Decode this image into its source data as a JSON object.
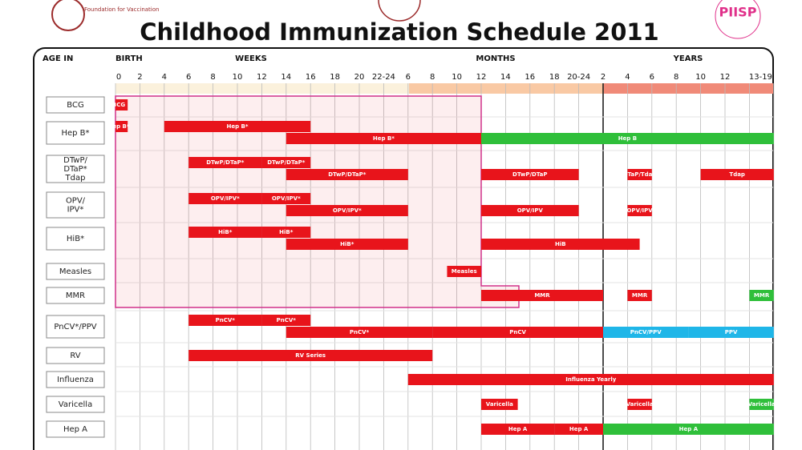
{
  "header": {
    "title": "Childhood Immunization Schedule 2011",
    "logo_left": "Foundation for Vaccination",
    "logo_right": "PIISP"
  },
  "columns": {
    "age_in": "AGE IN",
    "birth": "BIRTH",
    "weeks": "WEEKS",
    "months": "MONTHS",
    "years": "YEARS",
    "ticks": [
      "0",
      "2",
      "4",
      "6",
      "8",
      "10",
      "12",
      "14",
      "16",
      "18",
      "20",
      "22-24",
      "6",
      "8",
      "10",
      "12",
      "14",
      "16",
      "18",
      "20-24",
      "2",
      "4",
      "6",
      "8",
      "10",
      "12",
      "13-19"
    ]
  },
  "rows": [
    {
      "name": "BCG",
      "lanes": [
        [
          {
            "label": "BCG",
            "from": 0,
            "to": 0.5,
            "color": "#e8141b"
          }
        ]
      ]
    },
    {
      "name": "Hep B*",
      "lanes": [
        [
          {
            "label": "Hep B*",
            "from": 0,
            "to": 0.5,
            "color": "#e8141b"
          },
          {
            "label": "Hep B*",
            "from": 2,
            "to": 8,
            "color": "#e8141b"
          }
        ],
        [
          {
            "label": "Hep B*",
            "from": 7,
            "to": 15,
            "color": "#e8141b"
          },
          {
            "label": "Hep B",
            "from": 15,
            "to": 27,
            "color": "#2fbf3a"
          }
        ]
      ]
    },
    {
      "name": "DTwP/ DTaP* Tdap",
      "lanes": [
        [
          {
            "label": "DTwP/DTaP*",
            "from": 3,
            "to": 6,
            "color": "#e8141b"
          },
          {
            "label": "DTwP/DTaP*",
            "from": 6,
            "to": 8,
            "color": "#e8141b"
          }
        ],
        [
          {
            "label": "DTwP/DTaP*",
            "from": 7,
            "to": 12,
            "color": "#e8141b"
          },
          {
            "label": "DTwP/DTaP",
            "from": 15,
            "to": 19,
            "color": "#e8141b"
          },
          {
            "label": "DTaP/Tdap",
            "from": 21,
            "to": 22,
            "color": "#e8141b"
          },
          {
            "label": "Tdap",
            "from": 24,
            "to": 27,
            "color": "#e8141b"
          }
        ]
      ]
    },
    {
      "name": "OPV/ IPV*",
      "lanes": [
        [
          {
            "label": "OPV/IPV*",
            "from": 3,
            "to": 6,
            "color": "#e8141b"
          },
          {
            "label": "OPV/IPV*",
            "from": 6,
            "to": 8,
            "color": "#e8141b"
          }
        ],
        [
          {
            "label": "OPV/IPV*",
            "from": 7,
            "to": 12,
            "color": "#e8141b"
          },
          {
            "label": "OPV/IPV",
            "from": 15,
            "to": 19,
            "color": "#e8141b"
          },
          {
            "label": "OPV/IPV",
            "from": 21,
            "to": 22,
            "color": "#e8141b"
          }
        ]
      ]
    },
    {
      "name": "HiB*",
      "lanes": [
        [
          {
            "label": "HiB*",
            "from": 3,
            "to": 6,
            "color": "#e8141b"
          },
          {
            "label": "HiB*",
            "from": 6,
            "to": 8,
            "color": "#e8141b"
          }
        ],
        [
          {
            "label": "HiB*",
            "from": 7,
            "to": 12,
            "color": "#e8141b"
          },
          {
            "label": "HiB",
            "from": 15,
            "to": 21.5,
            "color": "#e8141b"
          }
        ]
      ]
    },
    {
      "name": "Measles",
      "lanes": [
        [
          {
            "label": "Measles",
            "from": 13.6,
            "to": 15,
            "color": "#e8141b"
          }
        ]
      ]
    },
    {
      "name": "MMR",
      "lanes": [
        [
          {
            "label": "MMR",
            "from": 15,
            "to": 20,
            "color": "#e8141b"
          },
          {
            "label": "MMR",
            "from": 21,
            "to": 22,
            "color": "#e8141b"
          },
          {
            "label": "MMR",
            "from": 26,
            "to": 27,
            "color": "#2fbf3a"
          }
        ]
      ]
    },
    {
      "name": "PnCV*/PPV",
      "lanes": [
        [
          {
            "label": "PnCV*",
            "from": 3,
            "to": 6,
            "color": "#e8141b"
          },
          {
            "label": "PnCV*",
            "from": 6,
            "to": 8,
            "color": "#e8141b"
          }
        ],
        [
          {
            "label": "PnCV*",
            "from": 7,
            "to": 13,
            "color": "#e8141b"
          },
          {
            "label": "PnCV",
            "from": 13,
            "to": 20,
            "color": "#e8141b"
          },
          {
            "label": "PnCV/PPV",
            "from": 20,
            "to": 23.5,
            "color": "#1fb6e8"
          },
          {
            "label": "PPV",
            "from": 23.5,
            "to": 27,
            "color": "#1fb6e8"
          }
        ]
      ]
    },
    {
      "name": "RV",
      "lanes": [
        [
          {
            "label": "RV Series",
            "from": 3,
            "to": 13,
            "color": "#e8141b"
          }
        ]
      ]
    },
    {
      "name": "Influenza",
      "lanes": [
        [
          {
            "label": "Influenza Yearly",
            "from": 12,
            "to": 27,
            "color": "#e8141b"
          }
        ]
      ]
    },
    {
      "name": "Varicella",
      "lanes": [
        [
          {
            "label": "Varicella",
            "from": 15,
            "to": 16.5,
            "color": "#e8141b"
          },
          {
            "label": "Varicella",
            "from": 21,
            "to": 22,
            "color": "#e8141b"
          },
          {
            "label": "Varicella",
            "from": 26,
            "to": 27,
            "color": "#2fbf3a"
          }
        ]
      ]
    },
    {
      "name": "Hep A",
      "lanes": [
        [
          {
            "label": "Hep A",
            "from": 15,
            "to": 18,
            "color": "#e8141b"
          },
          {
            "label": "Hep A",
            "from": 18,
            "to": 20,
            "color": "#e8141b"
          },
          {
            "label": "Hep A",
            "from": 20,
            "to": 27,
            "color": "#2fbf3a"
          }
        ]
      ]
    }
  ]
}
